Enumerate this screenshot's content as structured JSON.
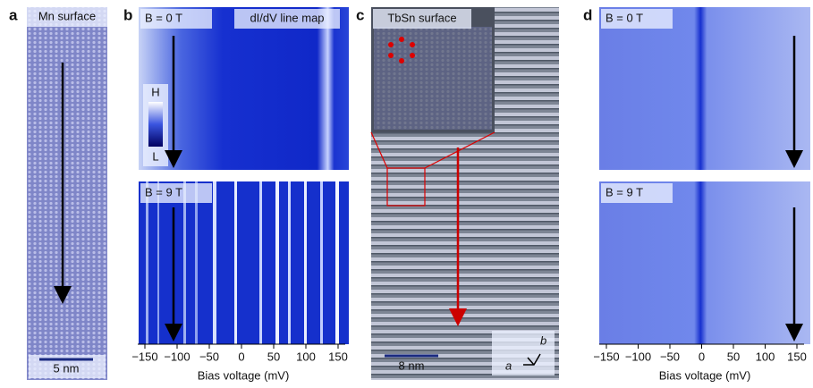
{
  "panels": {
    "a": {
      "label": "a",
      "title": "Mn surface",
      "scale_bar": "5 nm"
    },
    "b": {
      "label": "b",
      "top_field": "B = 0 T",
      "map_title": "dI/dV line map",
      "colorbar_high": "H",
      "colorbar_low": "L",
      "bottom_field": "B = 9 T",
      "x_ticks": [
        "−150",
        "−100",
        "−50",
        "0",
        "50",
        "100",
        "150"
      ],
      "x_label": "Bias voltage (mV)"
    },
    "c": {
      "label": "c",
      "title": "TbSn surface",
      "scale_bar": "8 nm",
      "axis_a": "a",
      "axis_b": "b"
    },
    "d": {
      "label": "d",
      "top_field": "B = 0 T",
      "bottom_field": "B = 9 T",
      "x_ticks": [
        "−150",
        "−100",
        "−50",
        "0",
        "50",
        "100",
        "150"
      ],
      "x_label": "Bias voltage (mV)"
    }
  }
}
